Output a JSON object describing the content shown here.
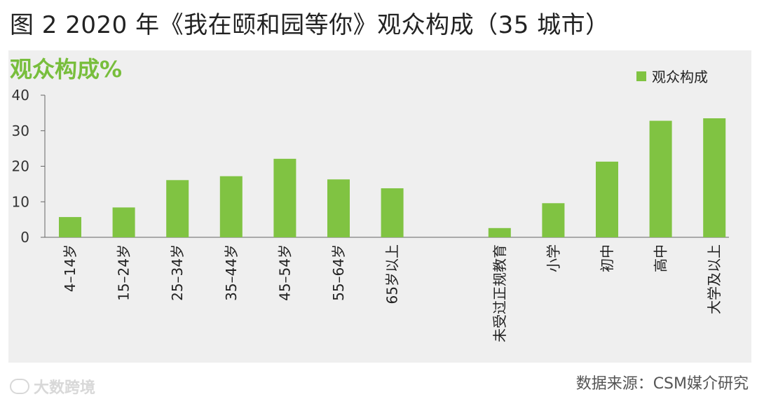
{
  "title": "图 2 2020 年《我在颐和园等你》观众构成（35 城市）",
  "source": "数据来源：CSM媒介研究",
  "watermark": "大数跨境",
  "colors": {
    "bar": "#80c342",
    "ylabel": "#78be3c",
    "panel": "#efefef"
  },
  "chart_data": {
    "type": "bar",
    "ylabel": "观众构成%",
    "legend": "top-right",
    "grid": false,
    "ylim": [
      0,
      40
    ],
    "yticks": [
      0,
      10,
      20,
      30,
      40
    ],
    "series": [
      {
        "name": "观众构成",
        "values": [
          5.7,
          8.4,
          16.1,
          17.2,
          22.1,
          16.3,
          13.8,
          null,
          2.6,
          9.6,
          21.3,
          32.8,
          33.5
        ]
      }
    ],
    "categories": [
      "4–14岁",
      "15–24岁",
      "25–34岁",
      "35–44岁",
      "45–54岁",
      "55–64岁",
      "65岁以上",
      "",
      "未受过正规教育",
      "小学",
      "初中",
      "高中",
      "大学及以上"
    ]
  }
}
